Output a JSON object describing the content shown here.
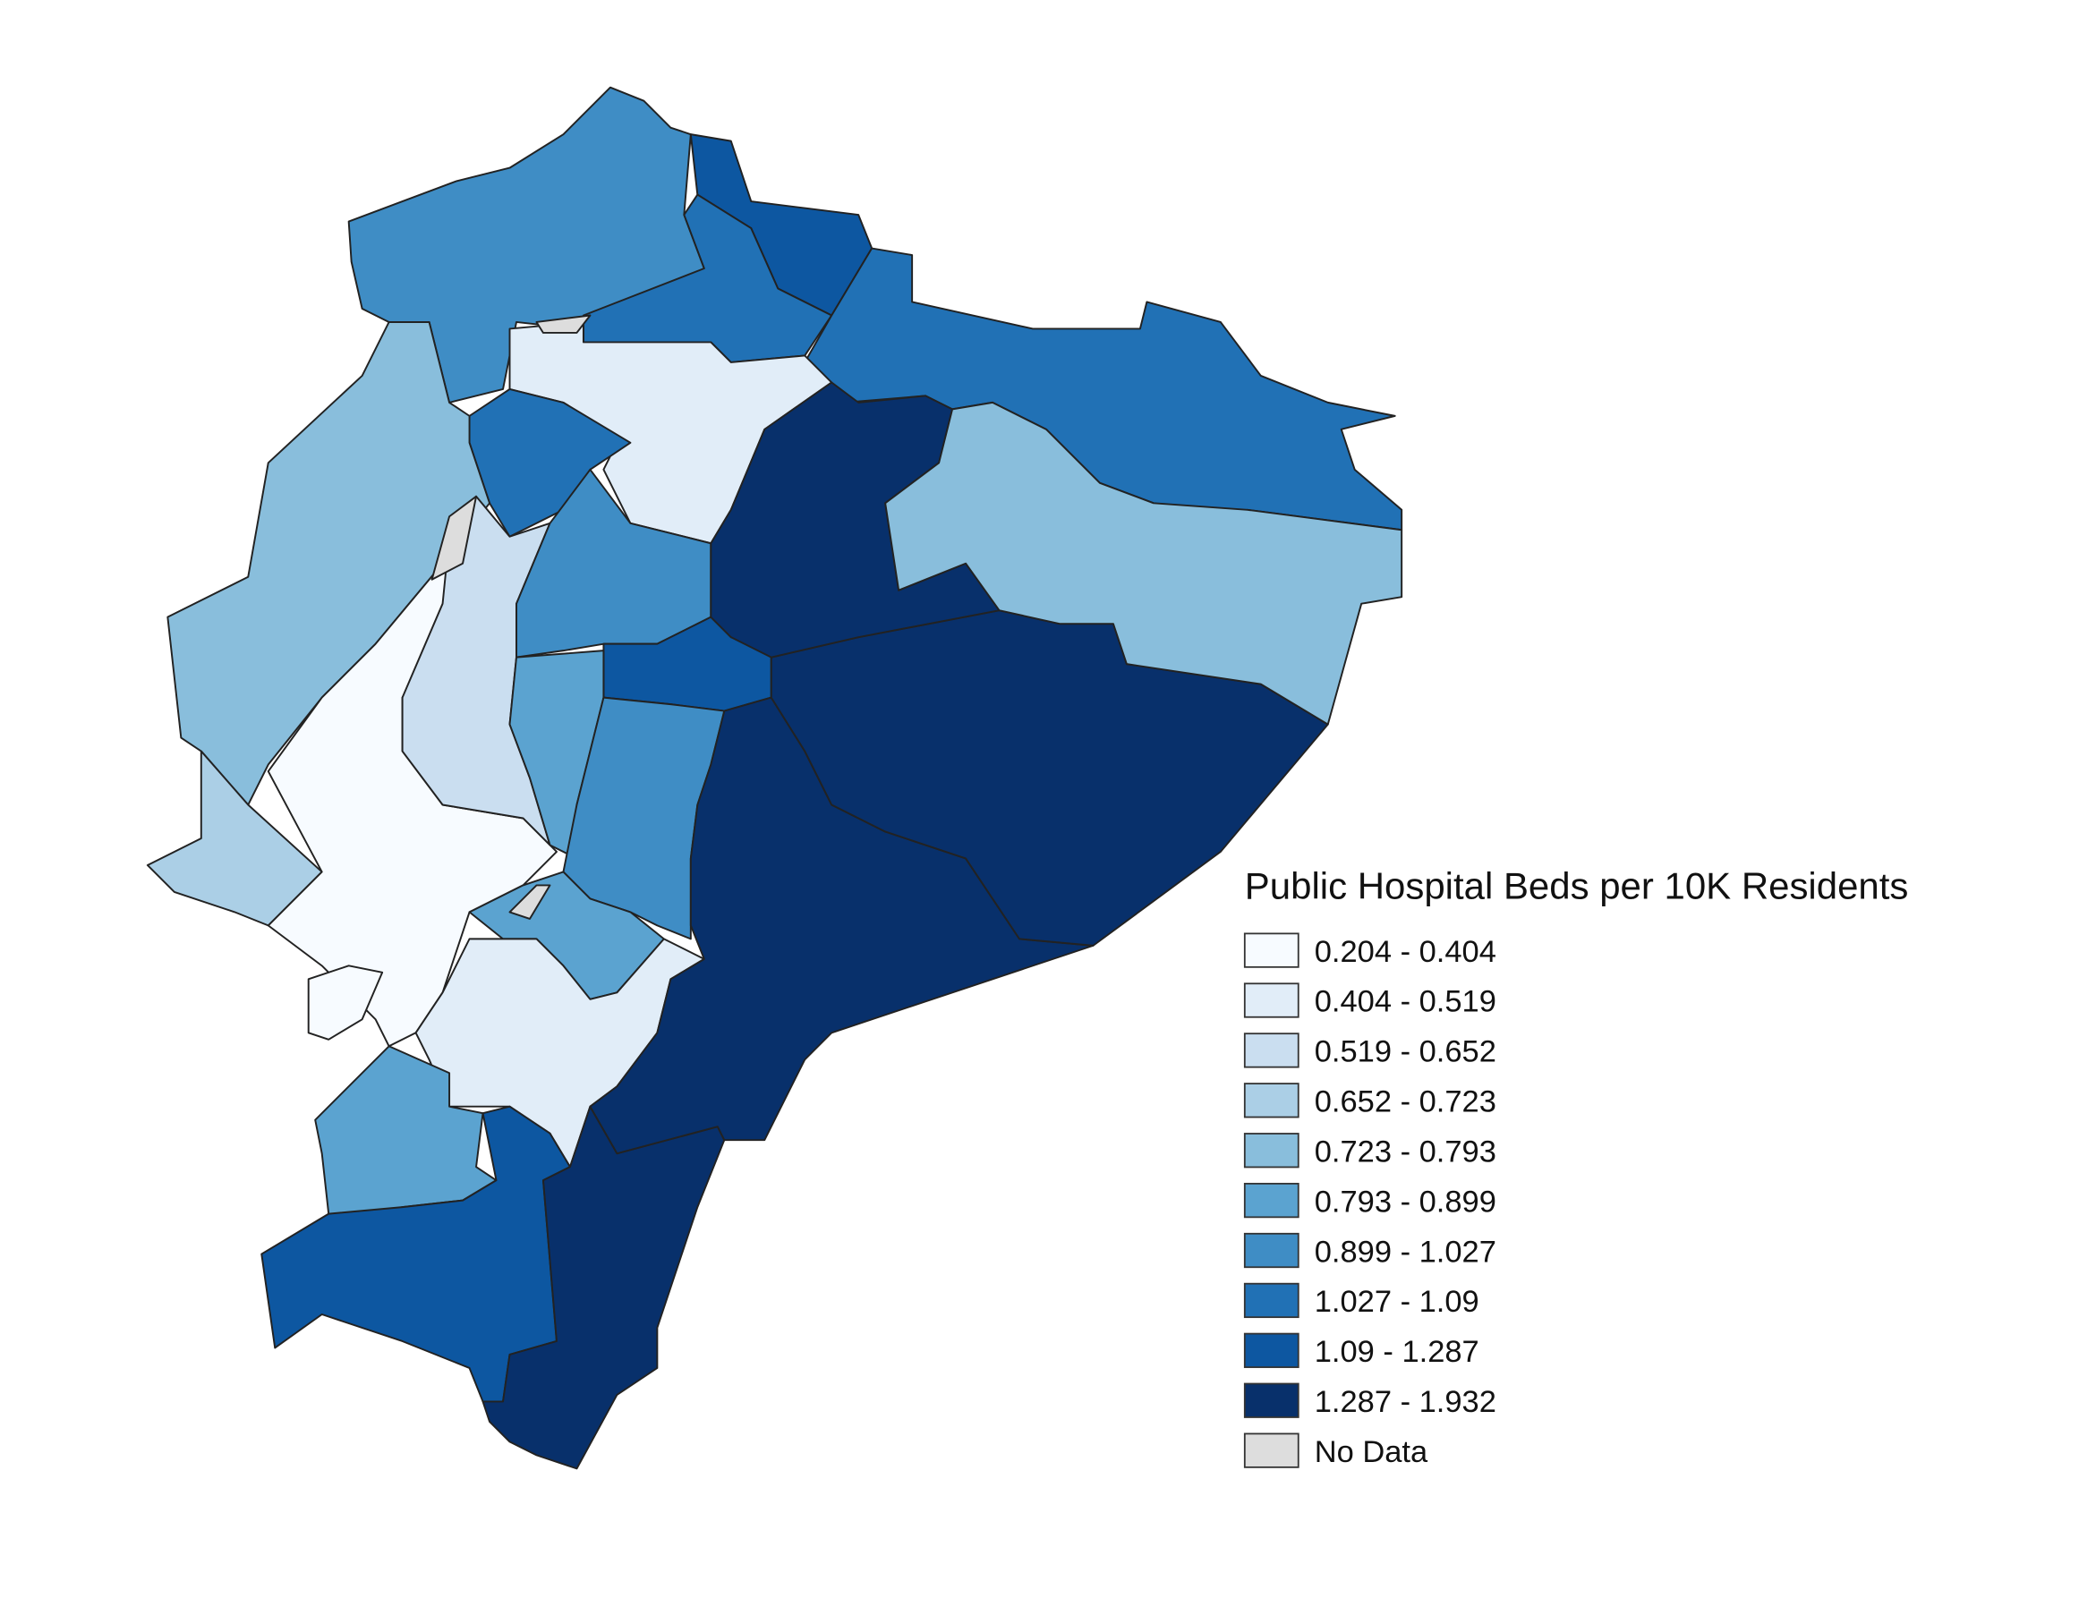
{
  "chart_data": {
    "type": "choropleth",
    "title": "Public Hospital Beds per 10K Residents",
    "legend_placement": "bottom-right",
    "classes": [
      {
        "label": "0.204 - 0.404",
        "range": [
          0.204,
          0.404
        ],
        "color": "#f7fbff"
      },
      {
        "label": "0.404 - 0.519",
        "range": [
          0.404,
          0.519
        ],
        "color": "#e1edf8"
      },
      {
        "label": "0.519 - 0.652",
        "range": [
          0.519,
          0.652
        ],
        "color": "#cadef0"
      },
      {
        "label": "0.652 - 0.723",
        "range": [
          0.652,
          0.723
        ],
        "color": "#abcfe6"
      },
      {
        "label": "0.723 - 0.793",
        "range": [
          0.723,
          0.793
        ],
        "color": "#89bedc"
      },
      {
        "label": "0.793 - 0.899",
        "range": [
          0.793,
          0.899
        ],
        "color": "#5ba3d0"
      },
      {
        "label": "0.899 - 1.027",
        "range": [
          0.899,
          1.027
        ],
        "color": "#3f8dc5"
      },
      {
        "label": "1.027 - 1.09",
        "range": [
          1.027,
          1.09
        ],
        "color": "#2171b5"
      },
      {
        "label": "1.09 - 1.287",
        "range": [
          1.09,
          1.287
        ],
        "color": "#0d57a1"
      },
      {
        "label": "1.287 - 1.932",
        "range": [
          1.287,
          1.932
        ],
        "color": "#08306b"
      },
      {
        "label": "No Data",
        "range": null,
        "color": "#dddddd"
      }
    ]
  }
}
